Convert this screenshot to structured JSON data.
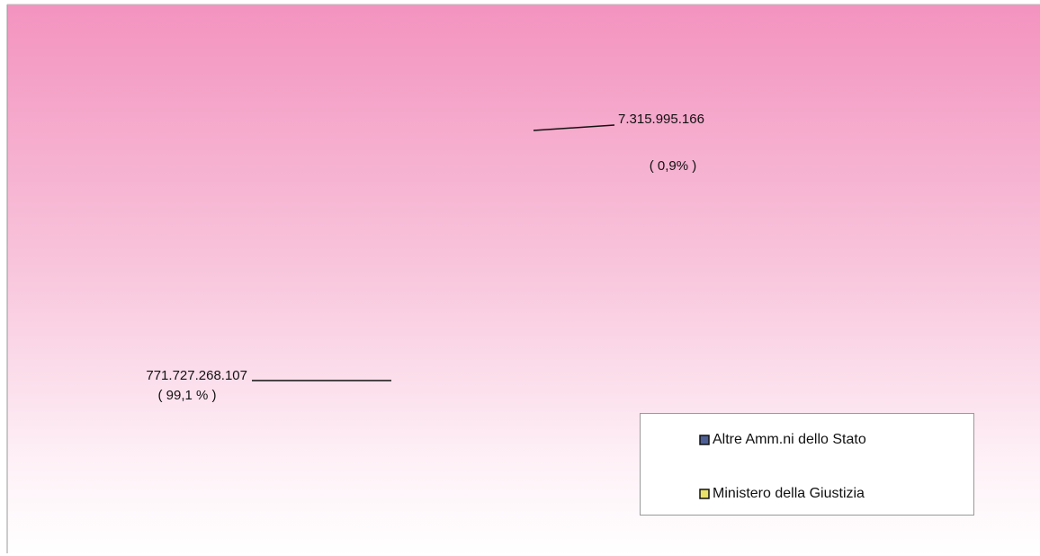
{
  "chart_data": {
    "type": "pie",
    "categories": [
      "Altre Amm.ni dello Stato",
      "Ministero della Giustizia"
    ],
    "values": [
      771727268107,
      7315995166
    ],
    "value_labels": [
      "771.727.268.107",
      "7.315.995.166"
    ],
    "percentages": [
      99.1,
      0.9
    ],
    "percentage_labels": [
      "( 99,1 % )",
      "( 0,9% )"
    ],
    "colors": [
      "#4d5f95",
      "#e9e26a"
    ],
    "legend": "lower right"
  }
}
